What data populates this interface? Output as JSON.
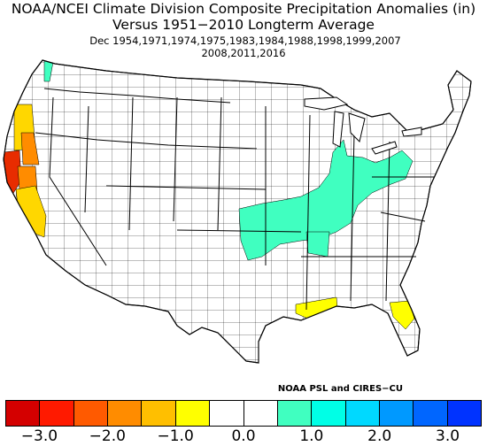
{
  "header": {
    "title_line1": "NOAA/NCEI Climate Division Composite Precipitation Anomalies (in)",
    "title_line2": "Versus 1951−2010 Longterm Average",
    "subtitle_line1": "Dec   1954,1971,1974,1975,1983,1984,1988,1998,1999,2007",
    "subtitle_line2": "2008,2011,2016"
  },
  "credit": "NOAA PSL and CIRES−CU",
  "legend": {
    "colors": [
      "#d40000",
      "#ff1a00",
      "#ff5a00",
      "#ff8c00",
      "#ffbf00",
      "#ffff00",
      "#ffffff",
      "#ffffff",
      "#40ffc0",
      "#00ffe6",
      "#00d9ff",
      "#0099ff",
      "#0066ff",
      "#0033ff"
    ],
    "tick_labels": [
      "−3.0",
      "−2.0",
      "−1.0",
      "0.0",
      "1.0",
      "2.0",
      "3.0"
    ]
  },
  "map": {
    "colors": {
      "dry_extreme": "#e82c00",
      "dry_strong": "#ff8c00",
      "dry_moderate": "#ffd700",
      "dry_light": "#ffff00",
      "wet_light": "#40ffc0"
    }
  }
}
